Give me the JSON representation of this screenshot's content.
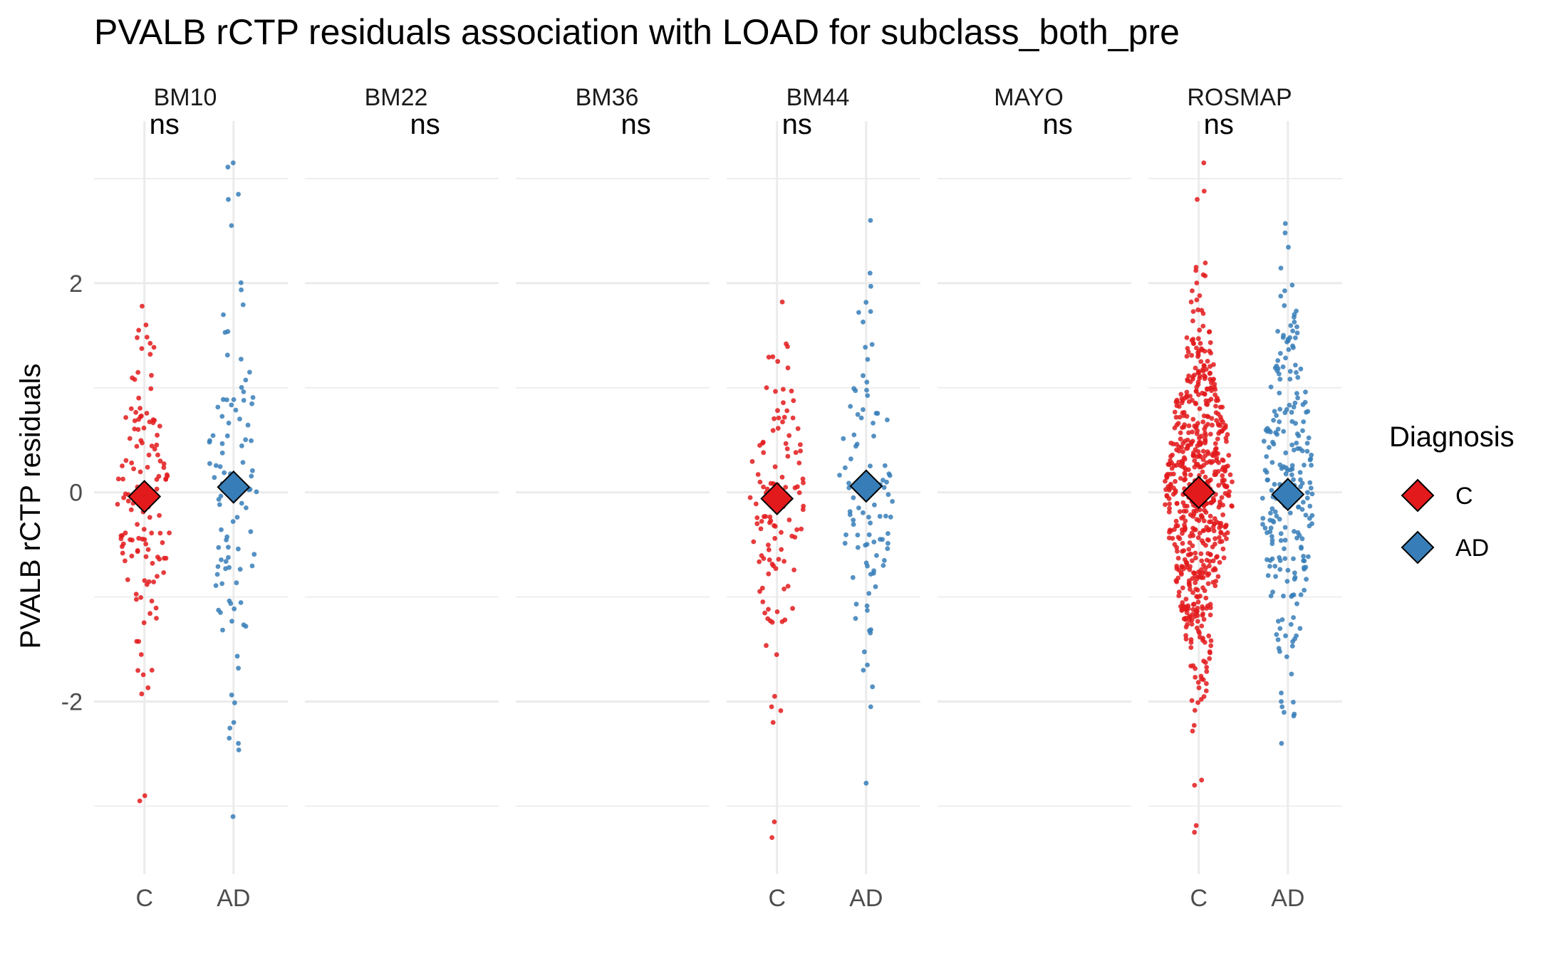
{
  "chart_data": {
    "type": "scatter",
    "title": "PVALB rCTP residuals association with LOAD for subclass_both_pre",
    "ylabel": "PVALB rCTP residuals",
    "xlabel": "",
    "ylim": [
      -3.65,
      3.55
    ],
    "yticks": [
      -2,
      0,
      2
    ],
    "categories": [
      "C",
      "AD"
    ],
    "legend": {
      "title": "Diagnosis",
      "placement": "right",
      "entries": [
        {
          "label": "C",
          "color": "#e31a1c"
        },
        {
          "label": "AD",
          "color": "#377eb8"
        }
      ]
    },
    "colors": {
      "C": "#e31a1c",
      "AD": "#377eb8"
    },
    "grid": true,
    "panels": [
      {
        "name": "BM10",
        "significance": "ns",
        "has_data": true,
        "summary": {
          "C": -0.04,
          "AD": 0.05
        },
        "points": {
          "C": {
            "n": 130,
            "sd": 0.78,
            "min": -2.95,
            "max": 1.78,
            "outliers": [
              -2.9,
              -2.95,
              -1.7,
              1.78,
              1.6,
              1.55
            ]
          },
          "AD": {
            "n": 105,
            "sd": 0.95,
            "min": -3.1,
            "max": 3.15,
            "outliers": [
              3.15,
              2.85,
              2.8,
              2.55,
              -2.2,
              -2.35,
              -2.4,
              -3.1
            ]
          }
        }
      },
      {
        "name": "BM22",
        "significance": "ns",
        "has_data": false
      },
      {
        "name": "BM36",
        "significance": "ns",
        "has_data": false
      },
      {
        "name": "BM44",
        "significance": "ns",
        "has_data": true,
        "summary": {
          "C": -0.06,
          "AD": 0.06
        },
        "points": {
          "C": {
            "n": 115,
            "sd": 0.85,
            "min": -3.3,
            "max": 1.82,
            "outliers": [
              -3.15,
              -3.3,
              -2.2,
              -2.05,
              -1.95,
              1.82
            ]
          },
          "AD": {
            "n": 95,
            "sd": 0.8,
            "min": -2.78,
            "max": 2.6,
            "outliers": [
              2.6,
              1.97,
              -2.05,
              -2.78,
              -1.7,
              -1.65
            ]
          }
        }
      },
      {
        "name": "MAYO",
        "significance": "ns",
        "has_data": false
      },
      {
        "name": "ROSMAP",
        "significance": "ns",
        "has_data": true,
        "summary": {
          "C": 0.0,
          "AD": -0.02
        },
        "points": {
          "C": {
            "n": 650,
            "sd": 0.85,
            "min": -3.25,
            "max": 3.15,
            "outliers": [
              3.15,
              2.88,
              2.8,
              -2.75,
              -2.8,
              -3.25
            ]
          },
          "AD": {
            "n": 240,
            "sd": 0.92,
            "min": -2.4,
            "max": 2.57,
            "outliers": [
              2.57,
              2.48,
              -2.4,
              -2.05,
              -2.0
            ]
          }
        }
      }
    ]
  }
}
